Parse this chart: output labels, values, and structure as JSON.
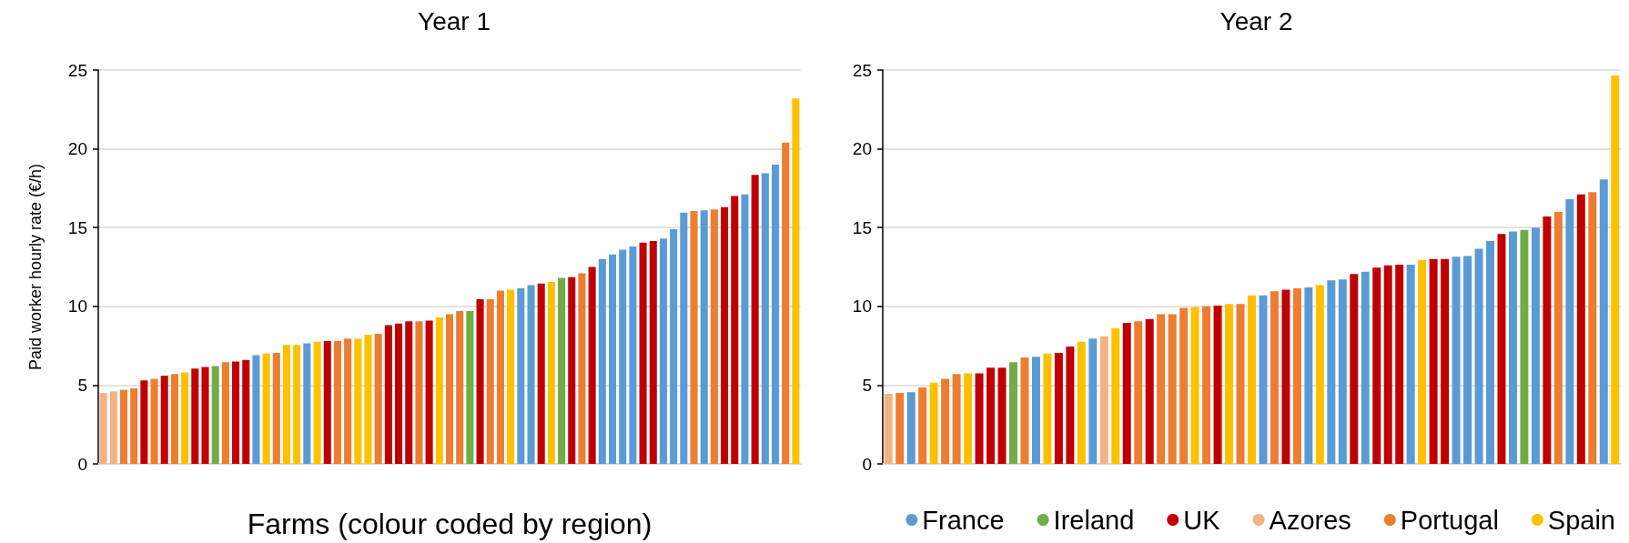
{
  "chart_data": [
    {
      "type": "bar",
      "title": "Year 1",
      "xlabel": "Farms (colour coded by region)",
      "ylabel": "Paid worker hourly rate (€/h)",
      "categories": [
        null,
        null,
        null,
        null,
        null,
        null,
        null,
        null,
        null,
        null,
        null,
        null,
        null,
        null,
        null,
        null,
        null,
        null,
        null,
        null,
        null,
        null,
        null,
        null,
        null,
        null,
        null,
        null,
        null,
        null,
        null,
        null,
        null,
        null,
        null,
        null,
        null,
        null,
        null,
        null,
        null,
        null,
        null,
        null,
        null,
        null,
        null,
        null,
        null,
        null,
        null,
        null,
        null,
        null,
        null,
        null,
        null,
        null,
        null,
        null,
        null,
        null,
        null,
        null,
        null,
        null,
        null,
        null,
        null
      ],
      "series": [
        {
          "color": "#5b9bd5",
          "values": [
            null,
            null,
            null,
            null,
            null,
            null,
            null,
            null,
            null,
            null,
            null,
            null,
            null,
            null,
            null,
            6.9,
            null,
            null,
            null,
            null,
            7.65,
            null,
            null,
            null,
            null,
            null,
            null,
            null,
            null,
            null,
            null,
            null,
            null,
            null,
            null,
            null,
            null,
            null,
            null,
            null,
            null,
            11.15,
            11.35,
            null,
            null,
            null,
            null,
            null,
            null,
            13.0,
            13.3,
            13.6,
            13.8,
            null,
            null,
            14.3,
            14.9,
            15.95,
            null,
            16.1,
            null,
            null,
            null,
            17.1,
            null,
            18.45,
            19.0,
            null,
            null
          ]
        },
        {
          "color": "#70ad47",
          "values": [
            null,
            null,
            null,
            null,
            null,
            null,
            null,
            null,
            null,
            null,
            null,
            6.2,
            null,
            null,
            null,
            null,
            null,
            null,
            null,
            null,
            null,
            null,
            null,
            null,
            null,
            null,
            null,
            null,
            null,
            null,
            null,
            null,
            null,
            null,
            null,
            null,
            9.7,
            null,
            null,
            null,
            null,
            null,
            null,
            null,
            null,
            11.8,
            null,
            null,
            null,
            null,
            null,
            null,
            null,
            null,
            null,
            null,
            null,
            null,
            null,
            null,
            null,
            null,
            null,
            null,
            null,
            null,
            null,
            null,
            null
          ]
        },
        {
          "color": "#c00000",
          "values": [
            null,
            null,
            null,
            null,
            5.3,
            null,
            5.6,
            null,
            null,
            6.05,
            6.15,
            null,
            null,
            6.5,
            6.6,
            null,
            null,
            null,
            null,
            null,
            null,
            null,
            7.8,
            null,
            null,
            null,
            null,
            null,
            8.8,
            8.9,
            9.05,
            null,
            9.1,
            null,
            null,
            null,
            null,
            10.45,
            null,
            null,
            null,
            null,
            null,
            11.45,
            null,
            null,
            11.85,
            null,
            12.5,
            null,
            null,
            null,
            null,
            14.05,
            14.15,
            null,
            null,
            null,
            null,
            null,
            null,
            16.3,
            17.0,
            null,
            18.35,
            null,
            null,
            null,
            null
          ]
        },
        {
          "color": "#f4b183",
          "values": [
            4.5,
            4.6,
            null,
            null,
            null,
            null,
            null,
            null,
            null,
            null,
            null,
            null,
            null,
            null,
            null,
            null,
            null,
            null,
            null,
            null,
            null,
            null,
            null,
            null,
            null,
            null,
            null,
            null,
            null,
            null,
            null,
            null,
            null,
            null,
            null,
            null,
            null,
            null,
            null,
            null,
            null,
            null,
            null,
            null,
            null,
            null,
            null,
            null,
            null,
            null,
            null,
            null,
            null,
            null,
            null,
            null,
            null,
            null,
            null,
            null,
            null,
            null,
            null,
            null,
            null,
            null,
            null,
            null,
            null
          ]
        },
        {
          "color": "#ed7d31",
          "values": [
            null,
            null,
            4.7,
            4.8,
            null,
            5.4,
            null,
            5.7,
            null,
            null,
            null,
            null,
            6.45,
            null,
            null,
            null,
            null,
            7.05,
            null,
            null,
            null,
            null,
            null,
            7.8,
            7.95,
            null,
            null,
            8.25,
            null,
            null,
            null,
            9.05,
            null,
            null,
            9.5,
            9.7,
            null,
            null,
            10.45,
            11.0,
            null,
            null,
            null,
            null,
            null,
            null,
            null,
            12.1,
            null,
            null,
            null,
            null,
            null,
            null,
            null,
            null,
            null,
            null,
            16.05,
            null,
            16.15,
            null,
            null,
            null,
            null,
            null,
            null,
            20.4,
            null
          ]
        },
        {
          "color": "#ffc000",
          "values": [
            null,
            null,
            null,
            null,
            null,
            null,
            null,
            null,
            5.8,
            null,
            null,
            null,
            null,
            null,
            null,
            null,
            7.0,
            null,
            7.55,
            7.55,
            null,
            7.75,
            null,
            null,
            null,
            7.95,
            8.2,
            null,
            null,
            null,
            null,
            null,
            null,
            9.3,
            null,
            null,
            null,
            null,
            null,
            null,
            11.05,
            null,
            null,
            null,
            11.55,
            null,
            null,
            null,
            null,
            null,
            null,
            null,
            null,
            null,
            null,
            null,
            null,
            null,
            null,
            null,
            null,
            null,
            null,
            null,
            null,
            null,
            null,
            null,
            23.2
          ]
        }
      ],
      "ylim": [
        0,
        25
      ],
      "yticks": [
        0,
        5,
        10,
        15,
        20,
        25
      ],
      "grid": "y",
      "legend": false
    },
    {
      "type": "bar",
      "title": "Year 2",
      "categories": [
        null,
        null,
        null,
        null,
        null,
        null,
        null,
        null,
        null,
        null,
        null,
        null,
        null,
        null,
        null,
        null,
        null,
        null,
        null,
        null,
        null,
        null,
        null,
        null,
        null,
        null,
        null,
        null,
        null,
        null,
        null,
        null,
        null,
        null,
        null,
        null,
        null,
        null,
        null,
        null,
        null,
        null,
        null,
        null,
        null,
        null,
        null,
        null,
        null,
        null,
        null,
        null,
        null,
        null,
        null,
        null,
        null,
        null,
        null,
        null,
        null,
        null,
        null,
        null,
        null
      ],
      "series": [
        {
          "name": "France",
          "color": "#5b9bd5",
          "values": [
            null,
            null,
            4.55,
            null,
            null,
            null,
            null,
            null,
            null,
            null,
            null,
            null,
            null,
            6.8,
            null,
            null,
            null,
            null,
            7.95,
            null,
            null,
            null,
            null,
            null,
            null,
            null,
            null,
            null,
            null,
            null,
            null,
            null,
            null,
            10.7,
            null,
            null,
            null,
            11.2,
            null,
            11.65,
            11.7,
            null,
            12.2,
            null,
            null,
            null,
            12.65,
            null,
            null,
            null,
            13.15,
            13.2,
            13.65,
            14.15,
            null,
            14.75,
            null,
            15.0,
            null,
            null,
            16.8,
            null,
            null,
            18.05,
            null
          ]
        },
        {
          "name": "Ireland",
          "color": "#70ad47",
          "values": [
            null,
            null,
            null,
            null,
            null,
            null,
            null,
            null,
            null,
            null,
            null,
            6.45,
            null,
            null,
            null,
            null,
            null,
            null,
            null,
            null,
            null,
            null,
            null,
            null,
            null,
            null,
            null,
            null,
            null,
            null,
            null,
            null,
            null,
            null,
            null,
            null,
            null,
            null,
            null,
            null,
            null,
            null,
            null,
            null,
            null,
            null,
            null,
            null,
            null,
            null,
            null,
            null,
            null,
            null,
            null,
            null,
            14.85,
            null,
            null,
            null,
            null,
            null,
            null,
            null,
            null
          ]
        },
        {
          "name": "UK",
          "color": "#c00000",
          "values": [
            null,
            null,
            null,
            null,
            null,
            null,
            null,
            null,
            5.75,
            6.1,
            6.1,
            null,
            null,
            null,
            null,
            7.05,
            7.45,
            null,
            null,
            null,
            null,
            8.95,
            null,
            9.2,
            null,
            null,
            null,
            null,
            null,
            10.05,
            null,
            null,
            null,
            null,
            null,
            11.05,
            null,
            null,
            null,
            null,
            null,
            12.05,
            null,
            12.45,
            12.6,
            12.65,
            null,
            null,
            13.0,
            13.0,
            null,
            null,
            null,
            null,
            14.6,
            null,
            null,
            null,
            15.7,
            null,
            null,
            17.1,
            null,
            null,
            null
          ]
        },
        {
          "name": "Azores",
          "color": "#f4b183",
          "values": [
            4.45,
            null,
            null,
            null,
            null,
            null,
            null,
            null,
            null,
            null,
            null,
            null,
            null,
            null,
            null,
            null,
            null,
            null,
            null,
            8.1,
            null,
            null,
            null,
            null,
            null,
            null,
            null,
            null,
            null,
            null,
            null,
            null,
            null,
            null,
            null,
            null,
            null,
            null,
            null,
            null,
            null,
            null,
            null,
            null,
            null,
            null,
            null,
            null,
            null,
            null,
            null,
            null,
            null,
            null,
            null,
            null,
            null,
            null,
            null,
            null,
            null,
            null,
            null,
            null,
            null
          ]
        },
        {
          "name": "Portugal",
          "color": "#ed7d31",
          "values": [
            null,
            4.5,
            null,
            4.85,
            null,
            5.4,
            5.7,
            null,
            null,
            null,
            null,
            null,
            6.75,
            null,
            null,
            null,
            null,
            null,
            null,
            null,
            null,
            null,
            9.05,
            null,
            9.5,
            9.5,
            9.9,
            null,
            10.0,
            null,
            null,
            10.15,
            null,
            null,
            10.95,
            null,
            11.15,
            null,
            null,
            null,
            null,
            null,
            null,
            null,
            null,
            null,
            null,
            null,
            null,
            null,
            null,
            null,
            null,
            null,
            null,
            null,
            null,
            null,
            null,
            16.0,
            null,
            null,
            17.25,
            null,
            null
          ]
        },
        {
          "name": "Spain",
          "color": "#ffc000",
          "values": [
            null,
            null,
            null,
            null,
            5.15,
            null,
            null,
            5.75,
            null,
            null,
            null,
            null,
            null,
            null,
            7.0,
            null,
            null,
            7.75,
            null,
            null,
            8.6,
            null,
            null,
            null,
            null,
            null,
            null,
            9.95,
            null,
            null,
            10.15,
            null,
            10.7,
            null,
            null,
            null,
            null,
            null,
            11.35,
            null,
            null,
            null,
            null,
            null,
            null,
            null,
            null,
            12.95,
            null,
            null,
            null,
            null,
            null,
            null,
            null,
            null,
            null,
            null,
            null,
            null,
            null,
            null,
            null,
            null,
            24.65
          ]
        }
      ],
      "ylim": [
        0,
        25
      ],
      "yticks": [
        0,
        5,
        10,
        15,
        20,
        25
      ],
      "grid": "y",
      "legend": "bottom right"
    }
  ]
}
